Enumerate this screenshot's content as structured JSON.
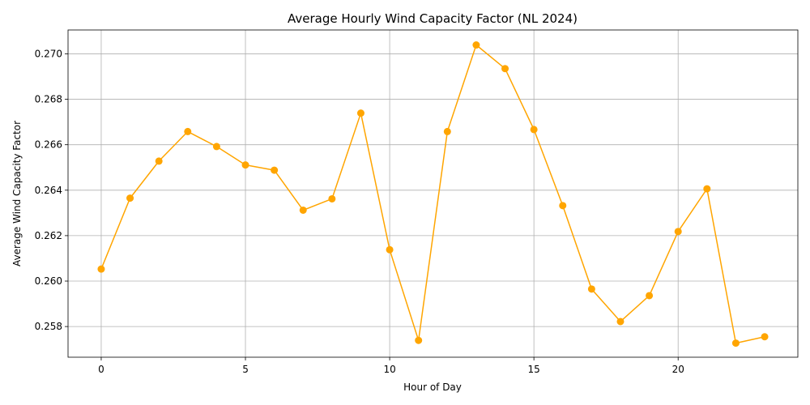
{
  "chart_data": {
    "type": "line",
    "title": "Average Hourly Wind Capacity Factor (NL 2024)",
    "xlabel": "Hour of Day",
    "ylabel": "Average Wind Capacity Factor",
    "x": [
      0,
      1,
      2,
      3,
      4,
      5,
      6,
      7,
      8,
      9,
      10,
      11,
      12,
      13,
      14,
      15,
      16,
      17,
      18,
      19,
      20,
      21,
      22,
      23
    ],
    "series": [
      {
        "values": [
          0.26053,
          0.26365,
          0.26528,
          0.26658,
          0.26592,
          0.26511,
          0.26488,
          0.26312,
          0.26362,
          0.26739,
          0.26138,
          0.25739,
          0.26658,
          0.27039,
          0.26935,
          0.26667,
          0.26332,
          0.25965,
          0.25822,
          0.25936,
          0.26218,
          0.26406,
          0.25727,
          0.25755
        ],
        "color": "#FFA500"
      }
    ],
    "xlim": [
      -1.15,
      24.15
    ],
    "ylim": [
      0.25665,
      0.27105
    ],
    "xticks": [
      0,
      5,
      10,
      15,
      20
    ],
    "yticks": [
      0.258,
      0.26,
      0.262,
      0.264,
      0.266,
      0.268,
      0.27
    ],
    "xtick_labels": [
      "0",
      "5",
      "10",
      "15",
      "20"
    ],
    "ytick_labels": [
      "0.258",
      "0.260",
      "0.262",
      "0.264",
      "0.266",
      "0.268",
      "0.270"
    ],
    "grid": true,
    "marker": "circle"
  }
}
